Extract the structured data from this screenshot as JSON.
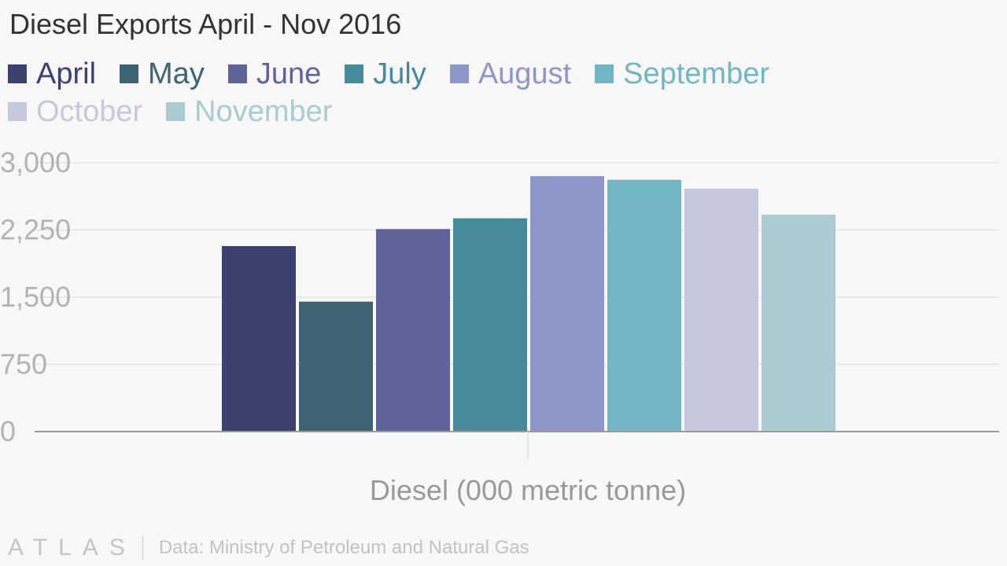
{
  "chart_data": {
    "type": "bar",
    "title": "Diesel Exports April - Nov 2016",
    "categories": [
      "Diesel (000 metric tonne)"
    ],
    "xlabel": "Diesel (000 metric tonne)",
    "ylabel": "",
    "ylim": [
      0,
      3000
    ],
    "yticks": [
      "0",
      "750",
      "1,500",
      "2,250",
      "3,000"
    ],
    "ytick_values": [
      0,
      750,
      1500,
      2250,
      3000
    ],
    "grid": true,
    "legend_position": "top-left",
    "series": [
      {
        "name": "April",
        "values": [
          2070
        ],
        "color": "#3c4170"
      },
      {
        "name": "May",
        "values": [
          1450
        ],
        "color": "#3e6474"
      },
      {
        "name": "June",
        "values": [
          2260
        ],
        "color": "#5e6497"
      },
      {
        "name": "July",
        "values": [
          2380
        ],
        "color": "#478a9a"
      },
      {
        "name": "August",
        "values": [
          2850
        ],
        "color": "#8d96c6"
      },
      {
        "name": "September",
        "values": [
          2810
        ],
        "color": "#72b5c4"
      },
      {
        "name": "October",
        "values": [
          2710
        ],
        "color": "#c6c8dc"
      },
      {
        "name": "November",
        "values": [
          2420
        ],
        "color": "#aacbcf"
      }
    ]
  },
  "footer": {
    "logo": "ATLAS",
    "source": "Data: Ministry of Petroleum and Natural Gas"
  }
}
